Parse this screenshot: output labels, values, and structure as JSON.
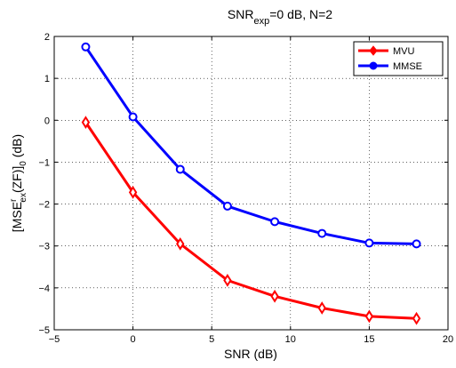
{
  "chart_data": {
    "type": "line",
    "title_parts": {
      "main": "SNR",
      "sub": "exp",
      "rest": "=0 dB, N=2"
    },
    "xlabel": "SNR (dB)",
    "ylabel_parts": {
      "a": "[MSE",
      "sup": "r",
      "sub": "ex",
      "b": "(ZF)]",
      "sub2": "0",
      "c": " (dB)"
    },
    "xlim": [
      -5,
      20
    ],
    "ylim": [
      -5,
      2
    ],
    "xticks": [
      -5,
      0,
      5,
      10,
      15,
      20
    ],
    "yticks": [
      -5,
      -4,
      -3,
      -2,
      -1,
      0,
      1,
      2
    ],
    "grid": true,
    "legend_position": "top-right",
    "x": [
      -3,
      0,
      3,
      6,
      9,
      12,
      15,
      18
    ],
    "series": [
      {
        "name": "MVU",
        "color": "#ff0000",
        "marker": "diamond",
        "values": [
          -0.05,
          -1.72,
          -2.95,
          -3.82,
          -4.2,
          -4.48,
          -4.68,
          -4.73
        ]
      },
      {
        "name": "MMSE",
        "color": "#0000ff",
        "marker": "circle",
        "values": [
          1.75,
          0.08,
          -1.17,
          -2.05,
          -2.42,
          -2.7,
          -2.93,
          -2.95
        ]
      }
    ]
  }
}
